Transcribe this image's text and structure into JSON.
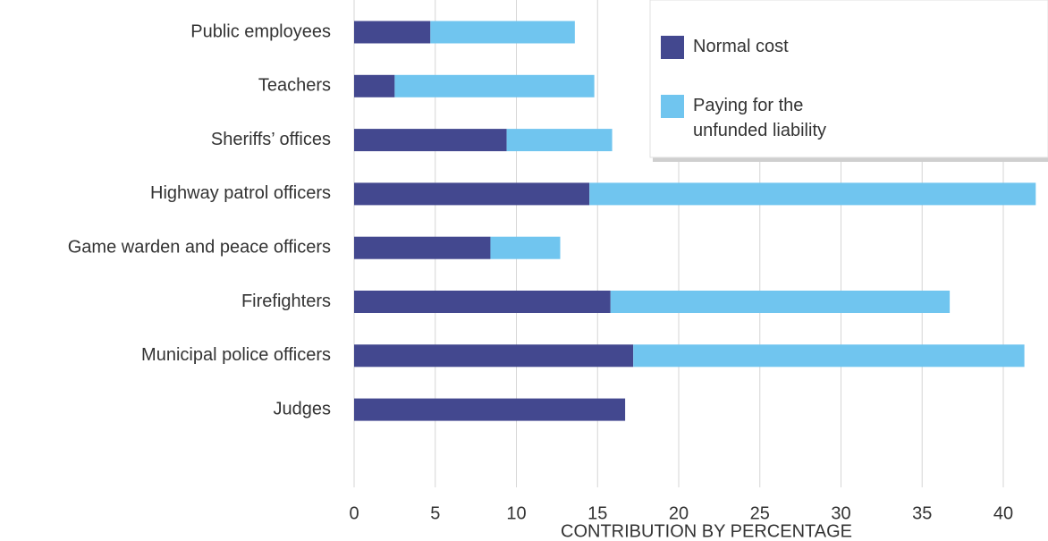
{
  "chart_data": {
    "type": "stacked-barh",
    "xlabel": "CONTRIBUTION BY PERCENTAGE",
    "categories": [
      "Public employees",
      "Teachers",
      "Sheriffs’ offices",
      "Highway patrol officers",
      "Game warden and peace officers",
      "Firefighters",
      "Municipal police officers",
      "Judges"
    ],
    "series": [
      {
        "name": "Normal cost",
        "color": "#43488f",
        "values": [
          4.7,
          2.5,
          9.4,
          14.5,
          8.4,
          15.8,
          17.2,
          16.7
        ]
      },
      {
        "name": "Paying for the unfunded liability",
        "color": "#70c5ef",
        "values": [
          8.9,
          12.3,
          6.5,
          27.5,
          4.3,
          20.9,
          24.1,
          0
        ]
      }
    ],
    "xlim": [
      0,
      42
    ],
    "xticks": [
      0,
      5,
      10,
      15,
      20,
      25,
      30,
      35,
      40
    ],
    "grid": true,
    "legend": "upper right"
  }
}
